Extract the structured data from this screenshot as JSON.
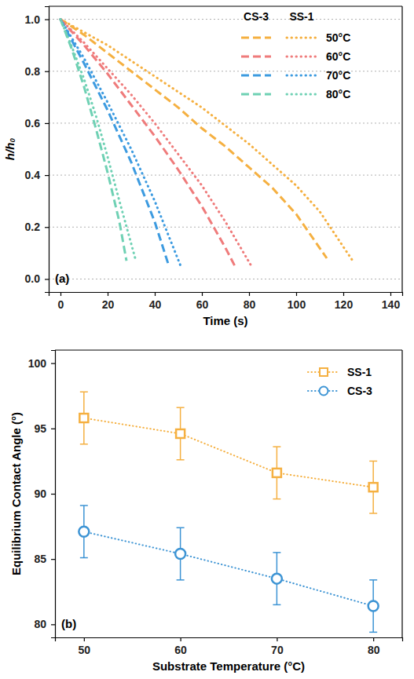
{
  "chart_data": [
    {
      "type": "line",
      "panel_label": "(a)",
      "x_label": "Time (s)",
      "y_label": "h/h₀",
      "xlim": [
        -5,
        145
      ],
      "xticks": [
        0,
        20,
        40,
        60,
        80,
        100,
        120,
        140
      ],
      "ylim": [
        -0.05,
        1.05
      ],
      "yticks": [
        {
          "value": 0,
          "label": "0.0"
        },
        0.2,
        0.4,
        0.6,
        0.8,
        {
          "value": 1,
          "label": "1.0"
        }
      ],
      "grid": "y",
      "legend": "upper right",
      "series": [
        {
          "name": "50°C",
          "group": "CS-3",
          "color": "#f5b041",
          "line_style": "dashed",
          "x": [
            0,
            10,
            20,
            30,
            40,
            50,
            60,
            70,
            80,
            90,
            100,
            113
          ],
          "values": [
            1.0,
            0.94,
            0.87,
            0.8,
            0.73,
            0.66,
            0.58,
            0.51,
            0.43,
            0.35,
            0.25,
            0.08
          ]
        },
        {
          "name": "60°C",
          "group": "CS-3",
          "color": "#ef7b7b",
          "line_style": "dashed",
          "x": [
            0,
            10,
            20,
            30,
            40,
            50,
            60,
            70,
            74
          ],
          "values": [
            1.0,
            0.9,
            0.79,
            0.67,
            0.55,
            0.42,
            0.28,
            0.12,
            0.05
          ]
        },
        {
          "name": "70°C",
          "group": "CS-3",
          "color": "#3d9be0",
          "line_style": "dashed",
          "x": [
            0,
            10,
            20,
            30,
            40,
            46
          ],
          "values": [
            1.0,
            0.83,
            0.65,
            0.45,
            0.22,
            0.05
          ]
        },
        {
          "name": "80°C",
          "group": "CS-3",
          "color": "#6fd1b4",
          "line_style": "dashed",
          "x": [
            0,
            5,
            10,
            15,
            20,
            25,
            28
          ],
          "values": [
            1.0,
            0.88,
            0.74,
            0.58,
            0.41,
            0.22,
            0.07
          ]
        },
        {
          "name": "50°C",
          "group": "SS-1",
          "color": "#f5b041",
          "line_style": "dotted",
          "x": [
            0,
            10,
            20,
            30,
            40,
            50,
            60,
            70,
            80,
            90,
            100,
            110,
            124
          ],
          "values": [
            1.0,
            0.95,
            0.9,
            0.84,
            0.78,
            0.72,
            0.66,
            0.59,
            0.52,
            0.44,
            0.36,
            0.26,
            0.07
          ]
        },
        {
          "name": "60°C",
          "group": "SS-1",
          "color": "#ef7b7b",
          "line_style": "dotted",
          "x": [
            0,
            10,
            20,
            30,
            40,
            50,
            60,
            70,
            81
          ],
          "values": [
            1.0,
            0.91,
            0.81,
            0.71,
            0.6,
            0.48,
            0.36,
            0.22,
            0.05
          ]
        },
        {
          "name": "70°C",
          "group": "SS-1",
          "color": "#3d9be0",
          "line_style": "dotted",
          "x": [
            0,
            10,
            20,
            30,
            40,
            51
          ],
          "values": [
            1.0,
            0.85,
            0.68,
            0.5,
            0.3,
            0.05
          ]
        },
        {
          "name": "80°C",
          "group": "SS-1",
          "color": "#6fd1b4",
          "line_style": "dotted",
          "x": [
            0,
            5,
            10,
            15,
            20,
            25,
            32
          ],
          "values": [
            1.0,
            0.89,
            0.77,
            0.63,
            0.47,
            0.3,
            0.07
          ]
        }
      ]
    },
    {
      "type": "scatter",
      "panel_label": "(b)",
      "x_label": "Substrate Temperature (°C)",
      "y_label": "Equilibrium Contact Angle (°)",
      "xlim": [
        47,
        83
      ],
      "xticks": [
        50,
        60,
        70,
        80
      ],
      "ylim": [
        79,
        101
      ],
      "yticks": [
        80,
        85,
        90,
        95,
        100
      ],
      "legend": "upper right",
      "series": [
        {
          "name": "SS-1",
          "color": "#f5b041",
          "marker": "square",
          "line_style": "dotted",
          "x": [
            50,
            60,
            70,
            80
          ],
          "values": [
            95.8,
            94.6,
            91.6,
            90.5
          ],
          "errors": [
            2.0,
            2.0,
            2.0,
            2.0
          ]
        },
        {
          "name": "CS-3",
          "color": "#3d94d4",
          "marker": "circle",
          "line_style": "dotted",
          "x": [
            50,
            60,
            70,
            80
          ],
          "values": [
            87.1,
            85.4,
            83.5,
            81.4
          ],
          "errors": [
            2.0,
            2.0,
            2.0,
            2.0
          ]
        }
      ]
    }
  ]
}
